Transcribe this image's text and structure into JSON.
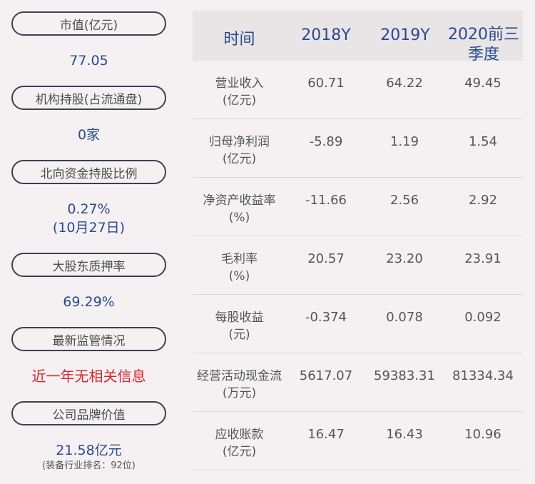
{
  "left": {
    "market_cap_label": "市值(亿元)",
    "market_cap_value": "77.05",
    "inst_label": "机构持股(占流通盘)",
    "inst_value": "0家",
    "north_label": "北向资金持股比例",
    "north_value": "0.27%",
    "north_date": "(10月27日)",
    "pledge_label": "大股东质押率",
    "pledge_value": "69.29%",
    "reg_label": "最新监管情况",
    "reg_value": "近一年无相关信息",
    "brand_label": "公司品牌价值",
    "brand_value": "21.58亿元",
    "brand_note": "(装备行业排名：92位)"
  },
  "table": {
    "headers": [
      "时间",
      "2018Y",
      "2019Y",
      "2020前三季度"
    ],
    "rows": [
      {
        "label1": "营业收入",
        "label2": "(亿元)",
        "v": [
          "60.71",
          "64.22",
          "49.45"
        ]
      },
      {
        "label1": "归母净利润",
        "label2": "(亿元)",
        "v": [
          "-5.89",
          "1.19",
          "1.54"
        ]
      },
      {
        "label1": "净资产收益率",
        "label2": "(%)",
        "v": [
          "-11.66",
          "2.56",
          "2.92"
        ]
      },
      {
        "label1": "毛利率",
        "label2": "(%)",
        "v": [
          "20.57",
          "23.20",
          "23.91"
        ]
      },
      {
        "label1": "每股收益",
        "label2": "(元)",
        "v": [
          "-0.374",
          "0.078",
          "0.092"
        ]
      },
      {
        "label1": "经营活动现金流",
        "label2": "(万元)",
        "v": [
          "5617.07",
          "59383.31",
          "81334.34"
        ]
      },
      {
        "label1": "应收账款",
        "label2": "(亿元)",
        "v": [
          "16.47",
          "16.43",
          "10.96"
        ]
      }
    ]
  }
}
